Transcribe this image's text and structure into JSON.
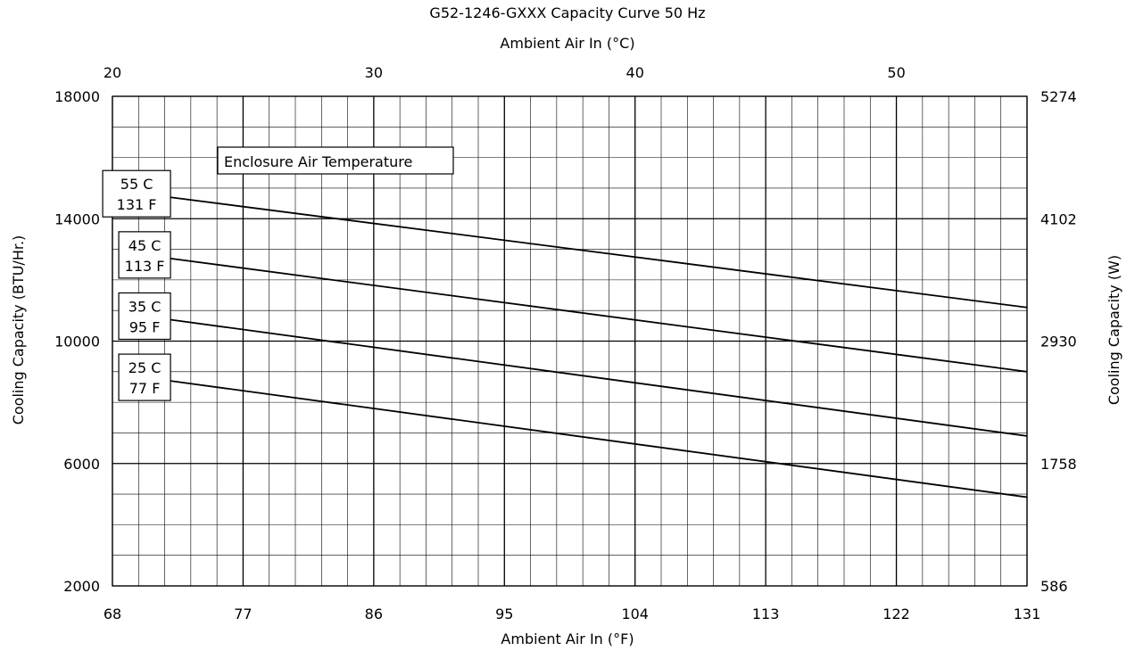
{
  "chart_data": {
    "type": "line",
    "title": "G52-1246-GXXX Capacity Curve 50 Hz",
    "top_xlabel": "Ambient Air In (°C)",
    "xlabel": "Ambient Air In (°F)",
    "ylabel": "Cooling Capacity (BTU/Hr.)",
    "right_ylabel": "Cooling Capacity (W)",
    "xlim": [
      68,
      131
    ],
    "ylim": [
      2000,
      18000
    ],
    "x_ticks": [
      "68",
      "77",
      "86",
      "95",
      "104",
      "113",
      "122",
      "131"
    ],
    "top_x_ticks": [
      "20",
      "30",
      "40",
      "50"
    ],
    "y_ticks": [
      "2000",
      "6000",
      "10000",
      "14000",
      "18000"
    ],
    "right_y_ticks": [
      "586",
      "1758",
      "2930",
      "4102",
      "5274"
    ],
    "grid": true,
    "legend_title": "Enclosure Air Temperature",
    "series": [
      {
        "name": "55 C 131 F",
        "label_line1": "55 C",
        "label_line2": "131 F",
        "x": [
          72,
          131
        ],
        "y": [
          14700,
          11100
        ]
      },
      {
        "name": "45 C 113 F",
        "label_line1": "45 C",
        "label_line2": "113 F",
        "x": [
          72,
          131
        ],
        "y": [
          12700,
          9000
        ]
      },
      {
        "name": "35 C 95 F",
        "label_line1": "35 C",
        "label_line2": "95 F",
        "x": [
          72,
          131
        ],
        "y": [
          10700,
          6900
        ]
      },
      {
        "name": "25 C 77 F",
        "label_line1": "25 C",
        "label_line2": "77 F",
        "x": [
          72,
          131
        ],
        "y": [
          8700,
          4900
        ]
      }
    ]
  }
}
